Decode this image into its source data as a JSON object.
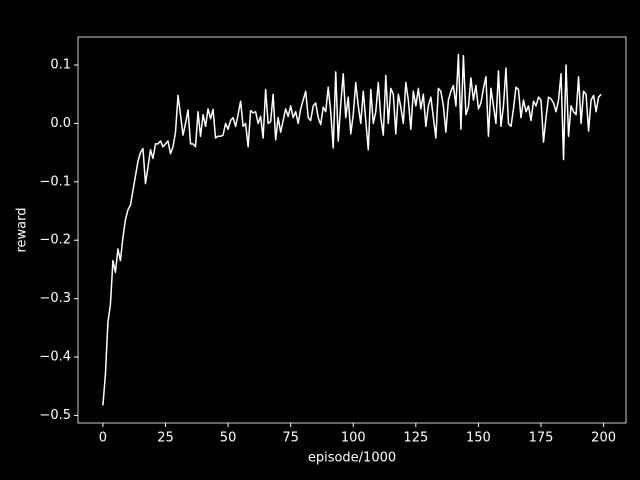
{
  "chart_data": {
    "type": "line",
    "xlabel": "episode/1000",
    "ylabel": "reward",
    "color": "#ffffff",
    "xlim": [
      -9.95,
      208.95
    ],
    "ylim": [
      -0.513,
      0.148
    ],
    "xticks": [
      0,
      25,
      50,
      75,
      100,
      125,
      150,
      175,
      200
    ],
    "yticks": [
      {
        "value": -0.5,
        "label": "−0.5"
      },
      {
        "value": -0.4,
        "label": "−0.4"
      },
      {
        "value": -0.3,
        "label": "−0.3"
      },
      {
        "value": -0.2,
        "label": "−0.2"
      },
      {
        "value": -0.1,
        "label": "−0.1"
      },
      {
        "value": 0.0,
        "label": "0.0"
      },
      0.1
    ],
    "x": [
      0,
      1,
      2,
      3,
      4,
      5,
      6,
      7,
      8,
      9,
      10,
      11,
      12,
      13,
      14,
      15,
      16,
      17,
      18,
      19,
      20,
      21,
      22,
      23,
      24,
      25,
      26,
      27,
      28,
      29,
      30,
      31,
      32,
      33,
      34,
      35,
      36,
      37,
      38,
      39,
      40,
      41,
      42,
      43,
      44,
      45,
      46,
      47,
      48,
      49,
      50,
      51,
      52,
      53,
      54,
      55,
      56,
      57,
      58,
      59,
      60,
      61,
      62,
      63,
      64,
      65,
      66,
      67,
      68,
      69,
      70,
      71,
      72,
      73,
      74,
      75,
      76,
      77,
      78,
      79,
      80,
      81,
      82,
      83,
      84,
      85,
      86,
      87,
      88,
      89,
      90,
      91,
      92,
      93,
      94,
      95,
      96,
      97,
      98,
      99,
      100,
      101,
      102,
      103,
      104,
      105,
      106,
      107,
      108,
      109,
      110,
      111,
      112,
      113,
      114,
      115,
      116,
      117,
      118,
      119,
      120,
      121,
      122,
      123,
      124,
      125,
      126,
      127,
      128,
      129,
      130,
      131,
      132,
      133,
      134,
      135,
      136,
      137,
      138,
      139,
      140,
      141,
      142,
      143,
      144,
      145,
      146,
      147,
      148,
      149,
      150,
      151,
      152,
      153,
      154,
      155,
      156,
      157,
      158,
      159,
      160,
      161,
      162,
      163,
      164,
      165,
      166,
      167,
      168,
      169,
      170,
      171,
      172,
      173,
      174,
      175,
      176,
      177,
      178,
      179,
      180,
      181,
      182,
      183,
      184,
      185,
      186,
      187,
      188,
      189,
      190,
      191,
      192,
      193,
      194,
      195,
      196,
      197,
      198,
      199
    ],
    "values": [
      -0.483,
      -0.43,
      -0.34,
      -0.31,
      -0.235,
      -0.255,
      -0.215,
      -0.235,
      -0.195,
      -0.165,
      -0.148,
      -0.14,
      -0.115,
      -0.09,
      -0.065,
      -0.05,
      -0.043,
      -0.103,
      -0.075,
      -0.045,
      -0.06,
      -0.035,
      -0.035,
      -0.03,
      -0.04,
      -0.035,
      -0.03,
      -0.052,
      -0.04,
      -0.015,
      0.048,
      0.015,
      -0.02,
      0.0,
      0.023,
      -0.035,
      -0.035,
      -0.04,
      0.02,
      -0.022,
      0.015,
      -0.005,
      0.025,
      0.008,
      0.024,
      -0.025,
      -0.022,
      -0.022,
      -0.02,
      0.0,
      -0.01,
      0.005,
      0.01,
      -0.005,
      0.015,
      0.038,
      -0.005,
      0.0,
      -0.04,
      0.022,
      0.018,
      0.02,
      0.0,
      0.012,
      -0.025,
      0.058,
      0.0,
      0.003,
      0.05,
      -0.028,
      0.01,
      -0.015,
      0.005,
      0.025,
      0.012,
      0.03,
      0.01,
      0.02,
      0.0,
      0.025,
      0.04,
      0.055,
      0.01,
      0.005,
      0.03,
      0.035,
      0.01,
      -0.002,
      0.028,
      0.02,
      0.062,
      0.02,
      -0.042,
      0.088,
      -0.03,
      0.032,
      0.085,
      0.01,
      0.045,
      -0.018,
      0.015,
      0.07,
      0.03,
      0.0,
      0.055,
      0.005,
      -0.045,
      0.058,
      0.0,
      0.02,
      0.07,
      0.01,
      -0.02,
      0.082,
      0.0,
      0.06,
      0.05,
      -0.018,
      0.05,
      0.028,
      0.0,
      0.07,
      0.04,
      -0.01,
      0.055,
      0.03,
      0.06,
      0.025,
      0.05,
      -0.005,
      0.03,
      0.045,
      0.01,
      -0.025,
      0.06,
      0.055,
      0.03,
      -0.015,
      0.04,
      0.055,
      0.065,
      0.03,
      0.118,
      -0.01,
      0.116,
      0.015,
      0.028,
      0.078,
      0.04,
      0.065,
      0.025,
      0.035,
      0.06,
      0.08,
      -0.022,
      0.06,
      0.03,
      0.0,
      0.09,
      -0.005,
      0.03,
      0.095,
      0.0,
      -0.005,
      0.025,
      0.062,
      0.058,
      0.01,
      0.04,
      0.02,
      0.03,
      0.005,
      0.038,
      0.03,
      0.045,
      0.04,
      -0.032,
      0.01,
      0.045,
      0.042,
      0.035,
      0.02,
      0.04,
      0.085,
      -0.062,
      0.1,
      -0.022,
      0.03,
      0.02,
      0.015,
      0.08,
      0.0,
      0.055,
      0.05,
      -0.013,
      0.04,
      0.048,
      0.02,
      0.045,
      0.05
    ]
  }
}
